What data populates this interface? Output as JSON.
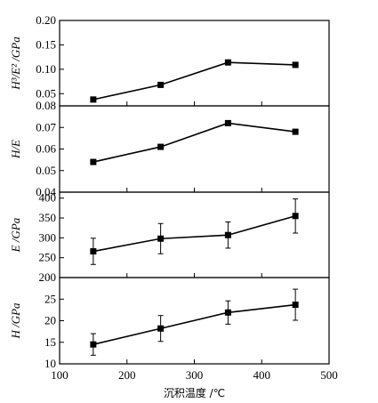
{
  "chart_data": [
    {
      "type": "line",
      "ylabel": "H³/E² /GPa",
      "ylim": [
        0.025,
        0.2
      ],
      "yticks": [
        0.05,
        0.1,
        0.15,
        0.2
      ],
      "ytick_labels": [
        "0.05",
        "0.10",
        "0.15",
        "0.20"
      ],
      "x": [
        150,
        250,
        350,
        450
      ],
      "y": [
        0.038,
        0.068,
        0.114,
        0.109
      ],
      "err": null
    },
    {
      "type": "line",
      "ylabel": "H/E",
      "ylim": [
        0.04,
        0.08
      ],
      "yticks": [
        0.04,
        0.05,
        0.06,
        0.07,
        0.08
      ],
      "ytick_labels": [
        "0.04",
        "0.05",
        "0.06",
        "0.07",
        "0.08"
      ],
      "x": [
        150,
        250,
        350,
        450
      ],
      "y": [
        0.054,
        0.061,
        0.072,
        0.068
      ],
      "err": null
    },
    {
      "type": "line",
      "ylabel": "E /GPa",
      "ylim": [
        200,
        415
      ],
      "yticks": [
        200,
        250,
        300,
        350,
        400
      ],
      "ytick_labels": [
        "200",
        "250",
        "300",
        "350",
        "400"
      ],
      "x": [
        150,
        250,
        350,
        450
      ],
      "y": [
        266,
        298,
        307,
        355
      ],
      "err": [
        33,
        38,
        33,
        43
      ]
    },
    {
      "type": "line",
      "ylabel": "H /GPa",
      "ylim": [
        10,
        30
      ],
      "yticks": [
        10,
        15,
        20,
        25
      ],
      "ytick_labels": [
        "10",
        "15",
        "20",
        "25"
      ],
      "x": [
        150,
        250,
        350,
        450
      ],
      "y": [
        14.5,
        18.2,
        21.9,
        23.7
      ],
      "err": [
        2.5,
        3.0,
        2.7,
        3.6
      ],
      "xlabel": "沉积温度 /℃",
      "xlim": [
        100,
        500
      ],
      "xticks": [
        100,
        200,
        300,
        400,
        500
      ],
      "xtick_labels": [
        "100",
        "200",
        "300",
        "400",
        "500"
      ]
    }
  ]
}
